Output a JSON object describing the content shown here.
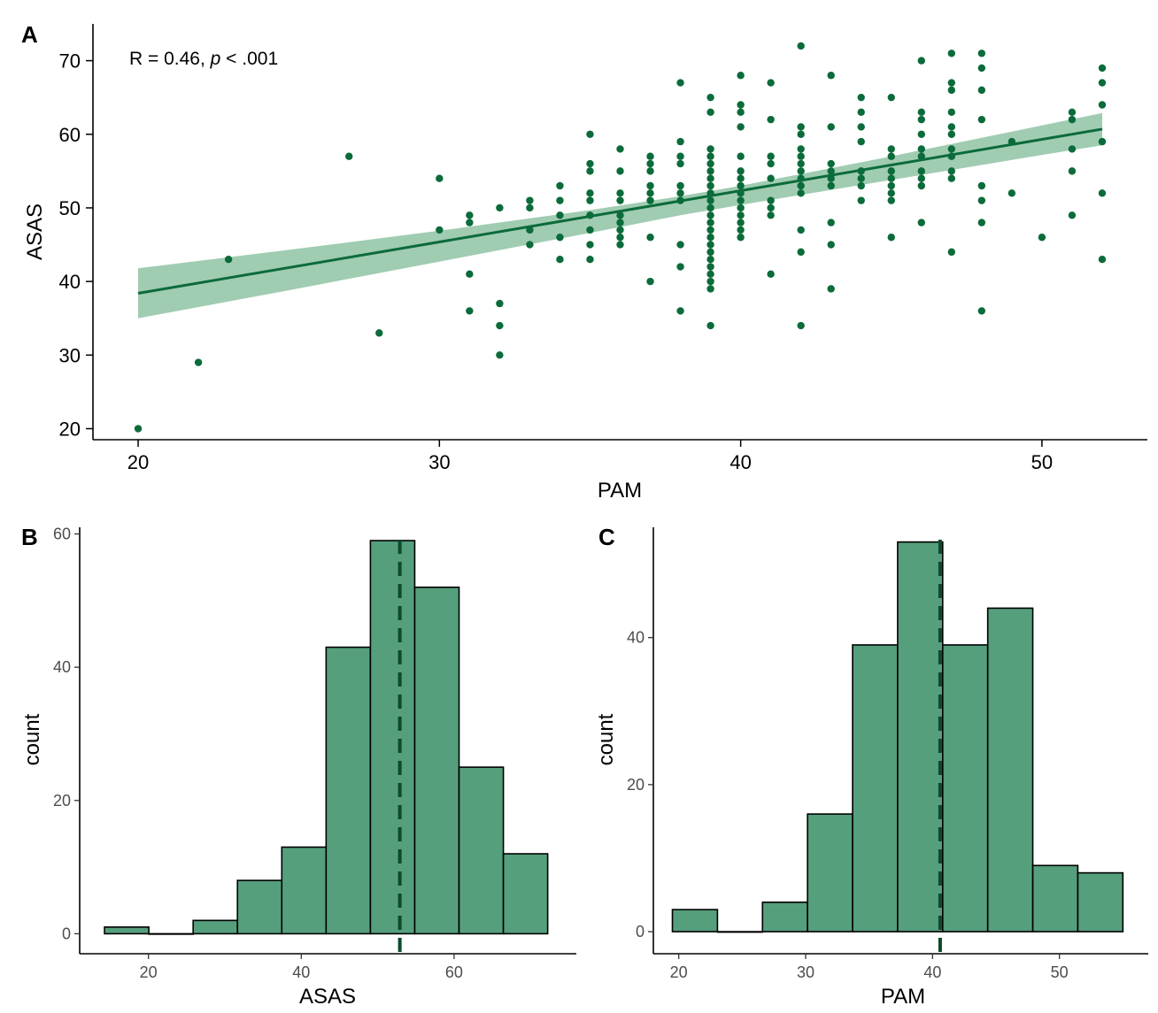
{
  "colors": {
    "point": "#0b6b3a",
    "line": "#0b6b3a",
    "band": "#8fc3a4",
    "bar_fill": "#559f7c",
    "bar_stroke": "#000000",
    "vline": "#0b4a2a"
  },
  "chart_data": [
    {
      "panel": "A",
      "type": "scatter",
      "xlabel": "PAM",
      "ylabel": "ASAS",
      "annotation": {
        "prefix": "R = 0.46, ",
        "p": "p",
        "suffix": " < .001"
      },
      "xlim": [
        18.5,
        53.5
      ],
      "ylim": [
        18.5,
        75
      ],
      "xticks": [
        20,
        30,
        40,
        50
      ],
      "yticks": [
        20,
        30,
        40,
        50,
        60,
        70
      ],
      "regression": {
        "x0": 20,
        "y0": 38.4,
        "x1": 52,
        "y1": 60.7
      },
      "band_upper": [
        [
          20,
          41.8
        ],
        [
          25,
          44.3
        ],
        [
          30,
          46.9
        ],
        [
          35,
          49.7
        ],
        [
          38,
          51.6
        ],
        [
          40,
          53.0
        ],
        [
          45,
          57.0
        ],
        [
          50,
          61.2
        ],
        [
          52,
          62.9
        ]
      ],
      "band_lower": [
        [
          20,
          35.0
        ],
        [
          25,
          38.8
        ],
        [
          30,
          42.7
        ],
        [
          35,
          46.6
        ],
        [
          38,
          49.0
        ],
        [
          40,
          50.4
        ],
        [
          45,
          53.8
        ],
        [
          50,
          57.2
        ],
        [
          52,
          58.5
        ]
      ],
      "points": [
        [
          20,
          20
        ],
        [
          22,
          29
        ],
        [
          23,
          43
        ],
        [
          27,
          57
        ],
        [
          28,
          33
        ],
        [
          30,
          54
        ],
        [
          30,
          47
        ],
        [
          31,
          49
        ],
        [
          31,
          48
        ],
        [
          31,
          41
        ],
        [
          31,
          36
        ],
        [
          32,
          50
        ],
        [
          32,
          37
        ],
        [
          32,
          34
        ],
        [
          32,
          30
        ],
        [
          33,
          51
        ],
        [
          33,
          50
        ],
        [
          33,
          47
        ],
        [
          33,
          45
        ],
        [
          34,
          53
        ],
        [
          34,
          51
        ],
        [
          34,
          49
        ],
        [
          34,
          46
        ],
        [
          34,
          43
        ],
        [
          35,
          60
        ],
        [
          35,
          56
        ],
        [
          35,
          55
        ],
        [
          35,
          52
        ],
        [
          35,
          51
        ],
        [
          35,
          49
        ],
        [
          35,
          47
        ],
        [
          35,
          45
        ],
        [
          35,
          43
        ],
        [
          36,
          58
        ],
        [
          36,
          55
        ],
        [
          36,
          52
        ],
        [
          36,
          51
        ],
        [
          36,
          49
        ],
        [
          36,
          48
        ],
        [
          36,
          47
        ],
        [
          36,
          46
        ],
        [
          36,
          45
        ],
        [
          37,
          57
        ],
        [
          37,
          56
        ],
        [
          37,
          55
        ],
        [
          37,
          53
        ],
        [
          37,
          52
        ],
        [
          37,
          51
        ],
        [
          37,
          46
        ],
        [
          37,
          40
        ],
        [
          38,
          67
        ],
        [
          38,
          59
        ],
        [
          38,
          57
        ],
        [
          38,
          56
        ],
        [
          38,
          53
        ],
        [
          38,
          52
        ],
        [
          38,
          51
        ],
        [
          38,
          45
        ],
        [
          38,
          42
        ],
        [
          38,
          36
        ],
        [
          39,
          65
        ],
        [
          39,
          63
        ],
        [
          39,
          58
        ],
        [
          39,
          57
        ],
        [
          39,
          56
        ],
        [
          39,
          55
        ],
        [
          39,
          54
        ],
        [
          39,
          53
        ],
        [
          39,
          52
        ],
        [
          39,
          51
        ],
        [
          39,
          50
        ],
        [
          39,
          49
        ],
        [
          39,
          48
        ],
        [
          39,
          47
        ],
        [
          39,
          46
        ],
        [
          39,
          45
        ],
        [
          39,
          44
        ],
        [
          39,
          43
        ],
        [
          39,
          42
        ],
        [
          39,
          41
        ],
        [
          39,
          40
        ],
        [
          39,
          39
        ],
        [
          39,
          34
        ],
        [
          40,
          68
        ],
        [
          40,
          64
        ],
        [
          40,
          63
        ],
        [
          40,
          61
        ],
        [
          40,
          57
        ],
        [
          40,
          55
        ],
        [
          40,
          54
        ],
        [
          40,
          53
        ],
        [
          40,
          52
        ],
        [
          40,
          51
        ],
        [
          40,
          50
        ],
        [
          40,
          49
        ],
        [
          40,
          48
        ],
        [
          40,
          47
        ],
        [
          40,
          46
        ],
        [
          41,
          67
        ],
        [
          41,
          62
        ],
        [
          41,
          57
        ],
        [
          41,
          56
        ],
        [
          41,
          54
        ],
        [
          41,
          51
        ],
        [
          41,
          50
        ],
        [
          41,
          49
        ],
        [
          41,
          41
        ],
        [
          42,
          72
        ],
        [
          42,
          61
        ],
        [
          42,
          60
        ],
        [
          42,
          58
        ],
        [
          42,
          57
        ],
        [
          42,
          56
        ],
        [
          42,
          55
        ],
        [
          42,
          54
        ],
        [
          42,
          53
        ],
        [
          42,
          52
        ],
        [
          42,
          47
        ],
        [
          42,
          44
        ],
        [
          42,
          34
        ],
        [
          43,
          68
        ],
        [
          43,
          61
        ],
        [
          43,
          56
        ],
        [
          43,
          55
        ],
        [
          43,
          54
        ],
        [
          43,
          53
        ],
        [
          43,
          48
        ],
        [
          43,
          45
        ],
        [
          43,
          39
        ],
        [
          44,
          65
        ],
        [
          44,
          63
        ],
        [
          44,
          61
        ],
        [
          44,
          59
        ],
        [
          44,
          55
        ],
        [
          44,
          54
        ],
        [
          44,
          53
        ],
        [
          44,
          51
        ],
        [
          45,
          65
        ],
        [
          45,
          58
        ],
        [
          45,
          57
        ],
        [
          45,
          55
        ],
        [
          45,
          54
        ],
        [
          45,
          53
        ],
        [
          45,
          52
        ],
        [
          45,
          51
        ],
        [
          45,
          46
        ],
        [
          46,
          70
        ],
        [
          46,
          63
        ],
        [
          46,
          62
        ],
        [
          46,
          60
        ],
        [
          46,
          58
        ],
        [
          46,
          57
        ],
        [
          46,
          55
        ],
        [
          46,
          54
        ],
        [
          46,
          53
        ],
        [
          46,
          48
        ],
        [
          47,
          71
        ],
        [
          47,
          67
        ],
        [
          47,
          66
        ],
        [
          47,
          63
        ],
        [
          47,
          61
        ],
        [
          47,
          60
        ],
        [
          47,
          58
        ],
        [
          47,
          57
        ],
        [
          47,
          55
        ],
        [
          47,
          54
        ],
        [
          47,
          44
        ],
        [
          48,
          71
        ],
        [
          48,
          69
        ],
        [
          48,
          66
        ],
        [
          48,
          62
        ],
        [
          48,
          53
        ],
        [
          48,
          51
        ],
        [
          48,
          48
        ],
        [
          48,
          36
        ],
        [
          49,
          59
        ],
        [
          49,
          52
        ],
        [
          50,
          46
        ],
        [
          51,
          63
        ],
        [
          51,
          62
        ],
        [
          51,
          58
        ],
        [
          51,
          55
        ],
        [
          51,
          49
        ],
        [
          52,
          69
        ],
        [
          52,
          67
        ],
        [
          52,
          64
        ],
        [
          52,
          59
        ],
        [
          52,
          52
        ],
        [
          52,
          43
        ]
      ]
    },
    {
      "panel": "B",
      "type": "bar",
      "subtype": "histogram",
      "xlabel": "ASAS",
      "ylabel": "count",
      "xlim": [
        11,
        76
      ],
      "ylim": [
        -3,
        61
      ],
      "xticks": [
        20,
        40,
        60
      ],
      "yticks": [
        0,
        20,
        40,
        60
      ],
      "bins": [
        {
          "x0": 14.25,
          "x1": 20.05,
          "count": 1
        },
        {
          "x0": 20.05,
          "x1": 25.85,
          "count": 0
        },
        {
          "x0": 25.85,
          "x1": 31.65,
          "count": 2
        },
        {
          "x0": 31.65,
          "x1": 37.45,
          "count": 8
        },
        {
          "x0": 37.45,
          "x1": 43.25,
          "count": 13
        },
        {
          "x0": 43.25,
          "x1": 49.05,
          "count": 43
        },
        {
          "x0": 49.05,
          "x1": 54.85,
          "count": 59
        },
        {
          "x0": 54.85,
          "x1": 60.65,
          "count": 52
        },
        {
          "x0": 60.65,
          "x1": 66.45,
          "count": 25
        },
        {
          "x0": 66.45,
          "x1": 72.25,
          "count": 12
        }
      ],
      "mean": 52.9
    },
    {
      "panel": "C",
      "type": "bar",
      "subtype": "histogram",
      "xlabel": "PAM",
      "ylabel": "count",
      "xlim": [
        18,
        57
      ],
      "ylim": [
        -3,
        55
      ],
      "xticks": [
        20,
        30,
        40,
        50
      ],
      "yticks": [
        0,
        20,
        40
      ],
      "bins": [
        {
          "x0": 19.5,
          "x1": 23.05,
          "count": 3
        },
        {
          "x0": 23.05,
          "x1": 26.6,
          "count": 0
        },
        {
          "x0": 26.6,
          "x1": 30.15,
          "count": 4
        },
        {
          "x0": 30.15,
          "x1": 33.7,
          "count": 16
        },
        {
          "x0": 33.7,
          "x1": 37.25,
          "count": 39
        },
        {
          "x0": 37.25,
          "x1": 40.8,
          "count": 53
        },
        {
          "x0": 40.8,
          "x1": 44.35,
          "count": 39
        },
        {
          "x0": 44.35,
          "x1": 47.9,
          "count": 44
        },
        {
          "x0": 47.9,
          "x1": 51.45,
          "count": 9
        },
        {
          "x0": 51.45,
          "x1": 55.0,
          "count": 8
        }
      ],
      "mean": 40.6
    }
  ]
}
